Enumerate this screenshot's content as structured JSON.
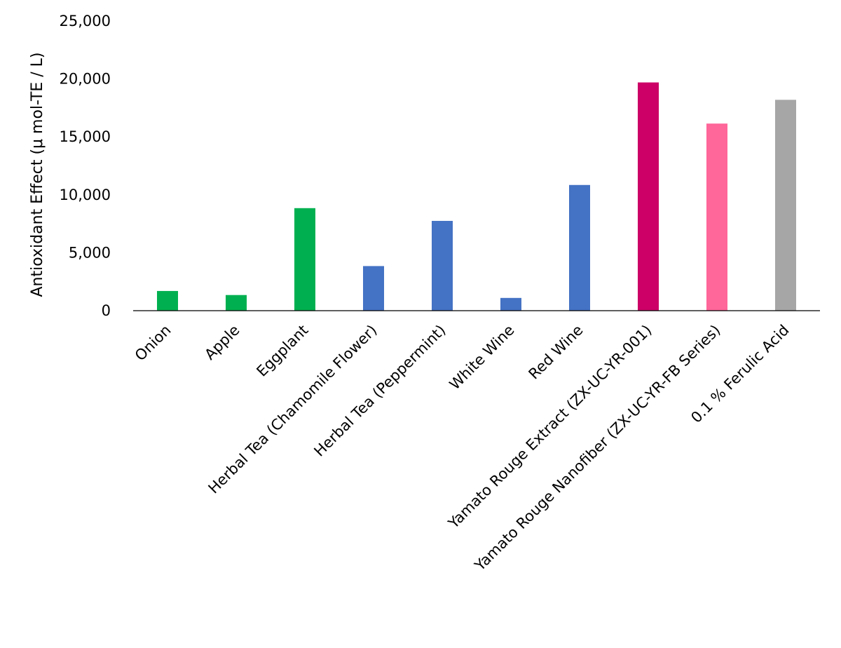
{
  "chart_data": {
    "type": "bar",
    "title": "",
    "xlabel": "",
    "ylabel": "Antioxidant Effect (μ mol-TE / L)",
    "ylim": [
      0,
      25000
    ],
    "yticks": [
      0,
      5000,
      10000,
      15000,
      20000,
      25000
    ],
    "ytick_labels": [
      "0",
      "5,000",
      "10,000",
      "15,000",
      "20,000",
      "25,000"
    ],
    "grid": false,
    "legend": "none",
    "categories": [
      "Onion",
      "Apple",
      "Eggplant",
      "Herbal Tea (Chamomile Flower)",
      "Herbal Tea (Peppermint)",
      "White Wine",
      "Red Wine",
      "Yamato Rouge Extract (ZX-UC-YR-001)",
      "Yamato Rouge Nanofiber (ZX-UC-YR-FB Series)",
      "0.1 % Ferulic Acid"
    ],
    "values": [
      1700,
      1350,
      8850,
      3850,
      7750,
      1100,
      10850,
      19700,
      16150,
      18200
    ],
    "colors": [
      "#00b050",
      "#00b050",
      "#00b050",
      "#4472c4",
      "#4472c4",
      "#4472c4",
      "#4472c4",
      "#cc0066",
      "#ff6699",
      "#a6a6a6"
    ]
  }
}
